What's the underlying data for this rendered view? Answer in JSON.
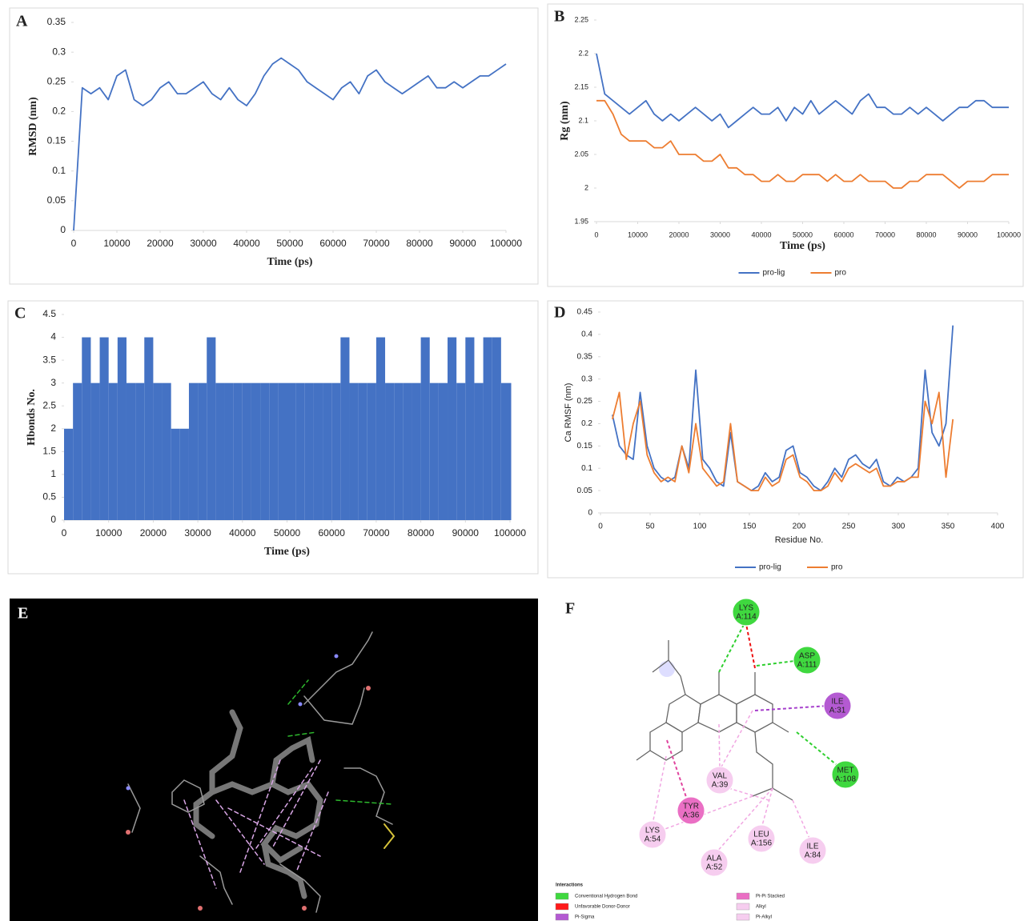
{
  "chart_data": [
    {
      "type": "line",
      "label": "A",
      "x_label": "Time (ps)",
      "y_label": "RMSD (nm)",
      "color": "#4472c4",
      "x": [
        0,
        2000,
        4000,
        6000,
        8000,
        10000,
        12000,
        14000,
        16000,
        18000,
        20000,
        22000,
        24000,
        26000,
        28000,
        30000,
        32000,
        34000,
        36000,
        38000,
        40000,
        42000,
        44000,
        46000,
        48000,
        50000,
        52000,
        54000,
        56000,
        58000,
        60000,
        62000,
        64000,
        66000,
        68000,
        70000,
        72000,
        74000,
        76000,
        78000,
        80000,
        82000,
        84000,
        86000,
        88000,
        90000,
        92000,
        94000,
        96000,
        98000,
        100000
      ],
      "values": [
        0,
        0.24,
        0.23,
        0.24,
        0.22,
        0.26,
        0.27,
        0.22,
        0.21,
        0.22,
        0.24,
        0.25,
        0.23,
        0.23,
        0.24,
        0.25,
        0.23,
        0.22,
        0.24,
        0.22,
        0.21,
        0.23,
        0.26,
        0.28,
        0.29,
        0.28,
        0.27,
        0.25,
        0.24,
        0.23,
        0.22,
        0.24,
        0.25,
        0.23,
        0.26,
        0.27,
        0.25,
        0.24,
        0.23,
        0.24,
        0.25,
        0.26,
        0.24,
        0.24,
        0.25,
        0.24,
        0.25,
        0.26,
        0.26,
        0.27,
        0.28
      ],
      "xlim": [
        0,
        100000
      ],
      "xticks": [
        0,
        10000,
        20000,
        30000,
        40000,
        50000,
        60000,
        70000,
        80000,
        90000,
        100000
      ],
      "ylim": [
        0,
        0.35
      ],
      "yticks": [
        0,
        0.05,
        0.1,
        0.15,
        0.2,
        0.25,
        0.3,
        0.35
      ]
    },
    {
      "type": "line",
      "label": "B",
      "x_label": "Time (ps)",
      "y_label": "Rg (nm)",
      "legend": "bottom",
      "x": [
        0,
        2000,
        4000,
        6000,
        8000,
        10000,
        12000,
        14000,
        16000,
        18000,
        20000,
        22000,
        24000,
        26000,
        28000,
        30000,
        32000,
        34000,
        36000,
        38000,
        40000,
        42000,
        44000,
        46000,
        48000,
        50000,
        52000,
        54000,
        56000,
        58000,
        60000,
        62000,
        64000,
        66000,
        68000,
        70000,
        72000,
        74000,
        76000,
        78000,
        80000,
        82000,
        84000,
        86000,
        88000,
        90000,
        92000,
        94000,
        96000,
        98000,
        100000
      ],
      "series": [
        {
          "name": "pro-lig",
          "color": "#4472c4",
          "values": [
            2.2,
            2.14,
            2.13,
            2.12,
            2.11,
            2.12,
            2.13,
            2.11,
            2.1,
            2.11,
            2.1,
            2.11,
            2.12,
            2.11,
            2.1,
            2.11,
            2.09,
            2.1,
            2.11,
            2.12,
            2.11,
            2.11,
            2.12,
            2.1,
            2.12,
            2.11,
            2.13,
            2.11,
            2.12,
            2.13,
            2.12,
            2.11,
            2.13,
            2.14,
            2.12,
            2.12,
            2.11,
            2.11,
            2.12,
            2.11,
            2.12,
            2.11,
            2.1,
            2.11,
            2.12,
            2.12,
            2.13,
            2.13,
            2.12,
            2.12,
            2.12
          ]
        },
        {
          "name": "pro",
          "color": "#ed7d31",
          "values": [
            2.13,
            2.13,
            2.11,
            2.08,
            2.07,
            2.07,
            2.07,
            2.06,
            2.06,
            2.07,
            2.05,
            2.05,
            2.05,
            2.04,
            2.04,
            2.05,
            2.03,
            2.03,
            2.02,
            2.02,
            2.01,
            2.01,
            2.02,
            2.01,
            2.01,
            2.02,
            2.02,
            2.02,
            2.01,
            2.02,
            2.01,
            2.01,
            2.02,
            2.01,
            2.01,
            2.01,
            2,
            2,
            2.01,
            2.01,
            2.02,
            2.02,
            2.02,
            2.01,
            2,
            2.01,
            2.01,
            2.01,
            2.02,
            2.02,
            2.02
          ]
        }
      ],
      "xlim": [
        0,
        100000
      ],
      "xticks": [
        0,
        10000,
        20000,
        30000,
        40000,
        50000,
        60000,
        70000,
        80000,
        90000,
        100000
      ],
      "ylim": [
        1.95,
        2.25
      ],
      "yticks": [
        1.95,
        2,
        2.05,
        2.1,
        2.15,
        2.2,
        2.25
      ]
    },
    {
      "type": "bar",
      "label": "C",
      "x_label": "Time (ps)",
      "y_label": "Hbonds  No.",
      "color": "#4472c4",
      "x": [
        0,
        2000,
        4000,
        6000,
        8000,
        10000,
        12000,
        14000,
        16000,
        18000,
        20000,
        22000,
        24000,
        26000,
        28000,
        30000,
        32000,
        34000,
        36000,
        38000,
        40000,
        42000,
        44000,
        46000,
        48000,
        50000,
        52000,
        54000,
        56000,
        58000,
        60000,
        62000,
        64000,
        66000,
        68000,
        70000,
        72000,
        74000,
        76000,
        78000,
        80000,
        82000,
        84000,
        86000,
        88000,
        90000,
        92000,
        94000,
        96000,
        98000,
        100000
      ],
      "values": [
        2,
        3,
        4,
        3,
        4,
        3,
        4,
        3,
        3,
        4,
        3,
        3,
        2,
        2,
        3,
        3,
        4,
        3,
        3,
        3,
        3,
        3,
        3,
        3,
        3,
        3,
        3,
        3,
        3,
        3,
        3,
        4,
        3,
        3,
        3,
        4,
        3,
        3,
        3,
        3,
        4,
        3,
        3,
        4,
        3,
        4,
        3,
        4,
        4,
        3,
        3
      ],
      "xlim": [
        0,
        100000
      ],
      "xticks": [
        0,
        10000,
        20000,
        30000,
        40000,
        50000,
        60000,
        70000,
        80000,
        90000,
        100000
      ],
      "ylim": [
        0,
        4.5
      ],
      "yticks": [
        0,
        0.5,
        1,
        1.5,
        2,
        2.5,
        3,
        3.5,
        4,
        4.5
      ]
    },
    {
      "type": "line",
      "label": "D",
      "x_label": "Residue No.",
      "y_label": "Ca RMSF (nm)",
      "legend": "bottom",
      "x": [
        12,
        19,
        26,
        33,
        40,
        47,
        54,
        61,
        68,
        75,
        82,
        89,
        96,
        103,
        110,
        117,
        124,
        131,
        138,
        145,
        152,
        159,
        166,
        173,
        180,
        187,
        194,
        201,
        208,
        215,
        222,
        229,
        236,
        243,
        250,
        257,
        264,
        271,
        278,
        285,
        292,
        299,
        306,
        313,
        320,
        327,
        334,
        341,
        348,
        355
      ],
      "series": [
        {
          "name": "pro-lig",
          "color": "#4472c4",
          "values": [
            0.22,
            0.15,
            0.13,
            0.12,
            0.27,
            0.15,
            0.1,
            0.08,
            0.07,
            0.08,
            0.15,
            0.1,
            0.32,
            0.12,
            0.1,
            0.07,
            0.06,
            0.18,
            0.07,
            0.06,
            0.05,
            0.06,
            0.09,
            0.07,
            0.08,
            0.14,
            0.15,
            0.09,
            0.08,
            0.06,
            0.05,
            0.07,
            0.1,
            0.08,
            0.12,
            0.13,
            0.11,
            0.1,
            0.12,
            0.07,
            0.06,
            0.08,
            0.07,
            0.08,
            0.1,
            0.32,
            0.18,
            0.15,
            0.2,
            0.42
          ]
        },
        {
          "name": "pro",
          "color": "#ed7d31",
          "values": [
            0.21,
            0.27,
            0.12,
            0.2,
            0.25,
            0.13,
            0.09,
            0.07,
            0.08,
            0.07,
            0.15,
            0.09,
            0.2,
            0.1,
            0.08,
            0.06,
            0.07,
            0.2,
            0.07,
            0.06,
            0.05,
            0.05,
            0.08,
            0.06,
            0.07,
            0.12,
            0.13,
            0.08,
            0.07,
            0.05,
            0.05,
            0.06,
            0.09,
            0.07,
            0.1,
            0.11,
            0.1,
            0.09,
            0.1,
            0.06,
            0.06,
            0.07,
            0.07,
            0.08,
            0.08,
            0.25,
            0.2,
            0.27,
            0.08,
            0.21
          ]
        }
      ],
      "xlim": [
        0,
        400
      ],
      "xticks": [
        0,
        50,
        100,
        150,
        200,
        250,
        300,
        350,
        400
      ],
      "ylim": [
        0,
        0.45
      ],
      "yticks": [
        0,
        0.05,
        0.1,
        0.15,
        0.2,
        0.25,
        0.3,
        0.35,
        0.4,
        0.45
      ]
    }
  ],
  "render_panel": {
    "label": "E"
  },
  "interaction_diagram": {
    "label": "F",
    "nodes": [
      {
        "residue": "LYS",
        "id": "A:114",
        "color": "#3fd83f"
      },
      {
        "residue": "ASP",
        "id": "A:111",
        "color": "#3fd83f"
      },
      {
        "residue": "ILE",
        "id": "A:31",
        "color": "#b45ad2"
      },
      {
        "residue": "MET",
        "id": "A:108",
        "color": "#3fd83f"
      },
      {
        "residue": "VAL",
        "id": "A:39",
        "color": "#f6cdef"
      },
      {
        "residue": "TYR",
        "id": "A:36",
        "color": "#ea6fc4"
      },
      {
        "residue": "LYS",
        "id": "A:54",
        "color": "#f6cdef"
      },
      {
        "residue": "LEU",
        "id": "A:156",
        "color": "#f6cdef"
      },
      {
        "residue": "ILE",
        "id": "A:84",
        "color": "#f6cdef"
      },
      {
        "residue": "ALA",
        "id": "A:52",
        "color": "#f6cdef"
      }
    ],
    "legend": {
      "title": "Interactions",
      "items": [
        {
          "text": "Conventional Hydrogen Bond",
          "color": "#3fd83f"
        },
        {
          "text": "Unfavorable Donor-Donor",
          "color": "#ff1a1a"
        },
        {
          "text": "Pi-Sigma",
          "color": "#b45ad2"
        },
        {
          "text": "Pi-Pi Stacked",
          "color": "#ea6fc4"
        },
        {
          "text": "Alkyl",
          "color": "#f6cdef"
        },
        {
          "text": "Pi-Alkyl",
          "color": "#f6cdef"
        }
      ]
    }
  }
}
